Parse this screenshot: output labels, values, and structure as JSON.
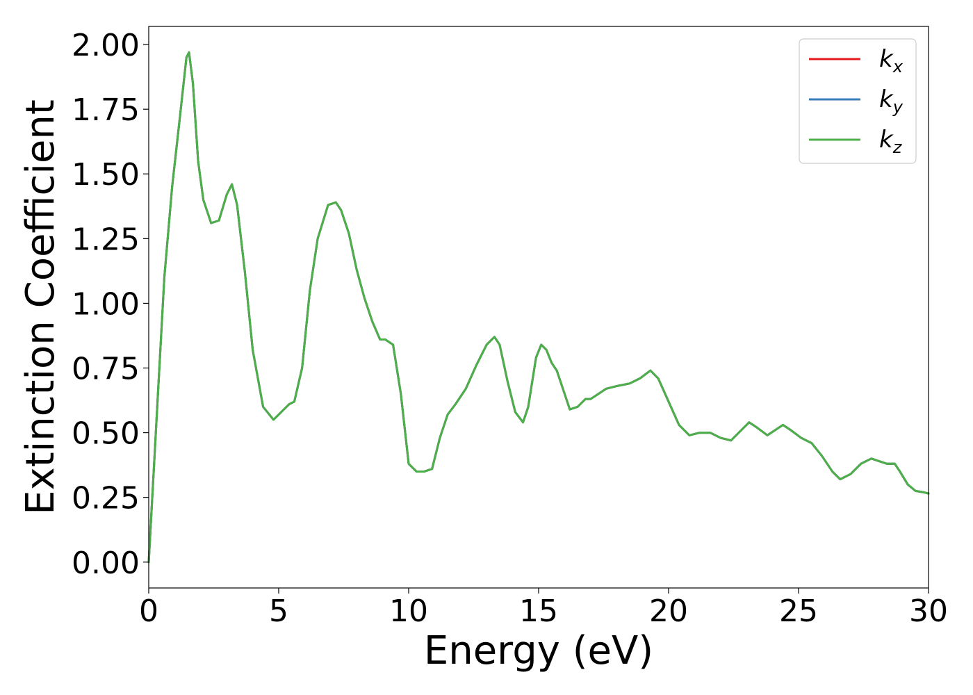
{
  "chart_data": {
    "type": "line",
    "title": "",
    "xlabel": "Energy (eV)",
    "ylabel": "Extinction Coefficient",
    "xlim": [
      0,
      30
    ],
    "ylim": [
      -0.1,
      2.07
    ],
    "xticks": [
      0,
      5,
      10,
      15,
      20,
      25,
      30
    ],
    "xtick_labels": [
      "0",
      "5",
      "10",
      "15",
      "20",
      "25",
      "30"
    ],
    "yticks": [
      0,
      0.25,
      0.5,
      0.75,
      1.0,
      1.25,
      1.5,
      1.75,
      2.0
    ],
    "ytick_labels": [
      "0.00",
      "0.25",
      "0.50",
      "0.75",
      "1.00",
      "1.25",
      "1.50",
      "1.75",
      "2.00"
    ],
    "grid": false,
    "legend_position": "top-right",
    "x": [
      0,
      0.3,
      0.6,
      0.9,
      1.2,
      1.45,
      1.55,
      1.7,
      1.9,
      2.1,
      2.4,
      2.7,
      3.0,
      3.2,
      3.4,
      3.7,
      4.0,
      4.4,
      4.8,
      5.1,
      5.4,
      5.6,
      5.9,
      6.2,
      6.5,
      6.9,
      7.2,
      7.4,
      7.7,
      8.0,
      8.3,
      8.6,
      8.9,
      9.1,
      9.4,
      9.7,
      10.0,
      10.3,
      10.6,
      10.9,
      11.2,
      11.5,
      11.8,
      12.2,
      12.6,
      13.0,
      13.3,
      13.5,
      13.8,
      14.1,
      14.4,
      14.6,
      14.9,
      15.1,
      15.3,
      15.5,
      15.7,
      15.9,
      16.2,
      16.5,
      16.8,
      17.0,
      17.3,
      17.6,
      18.0,
      18.5,
      18.9,
      19.3,
      19.6,
      20.0,
      20.4,
      20.8,
      21.2,
      21.6,
      22.0,
      22.4,
      22.8,
      23.1,
      23.4,
      23.8,
      24.1,
      24.4,
      24.7,
      25.1,
      25.5,
      25.9,
      26.3,
      26.6,
      27.0,
      27.4,
      27.8,
      28.1,
      28.4,
      28.7,
      28.9,
      29.2,
      29.5,
      29.8,
      30.0
    ],
    "series": [
      {
        "name": "k_x",
        "legend_main": "k",
        "legend_sub": "x",
        "color": "#e41a1c",
        "values": [
          0.0,
          0.55,
          1.1,
          1.45,
          1.72,
          1.95,
          1.97,
          1.85,
          1.55,
          1.4,
          1.31,
          1.32,
          1.42,
          1.46,
          1.38,
          1.12,
          0.82,
          0.6,
          0.55,
          0.58,
          0.61,
          0.62,
          0.75,
          1.05,
          1.25,
          1.38,
          1.39,
          1.36,
          1.27,
          1.13,
          1.02,
          0.93,
          0.86,
          0.86,
          0.84,
          0.65,
          0.38,
          0.35,
          0.35,
          0.36,
          0.48,
          0.57,
          0.61,
          0.67,
          0.76,
          0.84,
          0.87,
          0.84,
          0.7,
          0.58,
          0.54,
          0.6,
          0.79,
          0.84,
          0.82,
          0.77,
          0.74,
          0.68,
          0.59,
          0.6,
          0.63,
          0.63,
          0.65,
          0.67,
          0.68,
          0.69,
          0.71,
          0.74,
          0.71,
          0.62,
          0.53,
          0.49,
          0.5,
          0.5,
          0.48,
          0.47,
          0.51,
          0.54,
          0.52,
          0.49,
          0.51,
          0.53,
          0.51,
          0.48,
          0.46,
          0.41,
          0.35,
          0.32,
          0.34,
          0.38,
          0.4,
          0.39,
          0.38,
          0.38,
          0.35,
          0.3,
          0.275,
          0.27,
          0.265
        ]
      },
      {
        "name": "k_y",
        "legend_main": "k",
        "legend_sub": "y",
        "color": "#377eb8",
        "values": [
          0.0,
          0.55,
          1.1,
          1.45,
          1.72,
          1.95,
          1.97,
          1.85,
          1.55,
          1.4,
          1.31,
          1.32,
          1.42,
          1.46,
          1.38,
          1.12,
          0.82,
          0.6,
          0.55,
          0.58,
          0.61,
          0.62,
          0.75,
          1.05,
          1.25,
          1.38,
          1.39,
          1.36,
          1.27,
          1.13,
          1.02,
          0.93,
          0.86,
          0.86,
          0.84,
          0.65,
          0.38,
          0.35,
          0.35,
          0.36,
          0.48,
          0.57,
          0.61,
          0.67,
          0.76,
          0.84,
          0.87,
          0.84,
          0.7,
          0.58,
          0.54,
          0.6,
          0.79,
          0.84,
          0.82,
          0.77,
          0.74,
          0.68,
          0.59,
          0.6,
          0.63,
          0.63,
          0.65,
          0.67,
          0.68,
          0.69,
          0.71,
          0.74,
          0.71,
          0.62,
          0.53,
          0.49,
          0.5,
          0.5,
          0.48,
          0.47,
          0.51,
          0.54,
          0.52,
          0.49,
          0.51,
          0.53,
          0.51,
          0.48,
          0.46,
          0.41,
          0.35,
          0.32,
          0.34,
          0.38,
          0.4,
          0.39,
          0.38,
          0.38,
          0.35,
          0.3,
          0.275,
          0.27,
          0.265
        ]
      },
      {
        "name": "k_z",
        "legend_main": "k",
        "legend_sub": "z",
        "color": "#4daf4a",
        "values": [
          0.0,
          0.55,
          1.1,
          1.45,
          1.72,
          1.95,
          1.97,
          1.85,
          1.55,
          1.4,
          1.31,
          1.32,
          1.42,
          1.46,
          1.38,
          1.12,
          0.82,
          0.6,
          0.55,
          0.58,
          0.61,
          0.62,
          0.75,
          1.05,
          1.25,
          1.38,
          1.39,
          1.36,
          1.27,
          1.13,
          1.02,
          0.93,
          0.86,
          0.86,
          0.84,
          0.65,
          0.38,
          0.35,
          0.35,
          0.36,
          0.48,
          0.57,
          0.61,
          0.67,
          0.76,
          0.84,
          0.87,
          0.84,
          0.7,
          0.58,
          0.54,
          0.6,
          0.79,
          0.84,
          0.82,
          0.77,
          0.74,
          0.68,
          0.59,
          0.6,
          0.63,
          0.63,
          0.65,
          0.67,
          0.68,
          0.69,
          0.71,
          0.74,
          0.71,
          0.62,
          0.53,
          0.49,
          0.5,
          0.5,
          0.48,
          0.47,
          0.51,
          0.54,
          0.52,
          0.49,
          0.51,
          0.53,
          0.51,
          0.48,
          0.46,
          0.41,
          0.35,
          0.32,
          0.34,
          0.38,
          0.4,
          0.39,
          0.38,
          0.38,
          0.35,
          0.3,
          0.275,
          0.27,
          0.265
        ]
      }
    ]
  }
}
